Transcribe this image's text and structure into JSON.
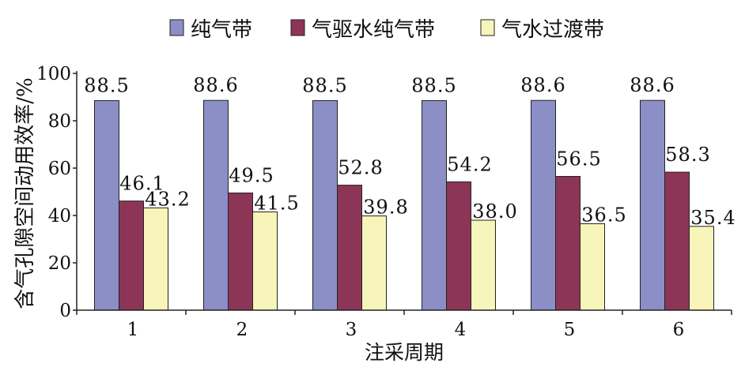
{
  "chart_data": {
    "type": "bar",
    "categories": [
      "1",
      "2",
      "3",
      "4",
      "5",
      "6"
    ],
    "series": [
      {
        "name": "纯气带",
        "values": [
          88.5,
          88.6,
          88.5,
          88.5,
          88.6,
          88.6
        ],
        "color": "#8c8ec6"
      },
      {
        "name": "气驱水纯气带",
        "values": [
          46.1,
          49.5,
          52.8,
          54.2,
          56.5,
          58.3
        ],
        "color": "#8d3557"
      },
      {
        "name": "气水过渡带",
        "values": [
          43.2,
          41.5,
          39.8,
          38.0,
          36.5,
          35.4
        ],
        "color": "#f7f5ba"
      }
    ],
    "xlabel": "注采周期",
    "ylabel": "含气孔隙空间动用效率/%",
    "ylim": [
      0,
      100
    ],
    "yticks": [
      0,
      20,
      40,
      60,
      80,
      100
    ],
    "data_label_decimals": 1,
    "legend": "top",
    "grid": false
  }
}
